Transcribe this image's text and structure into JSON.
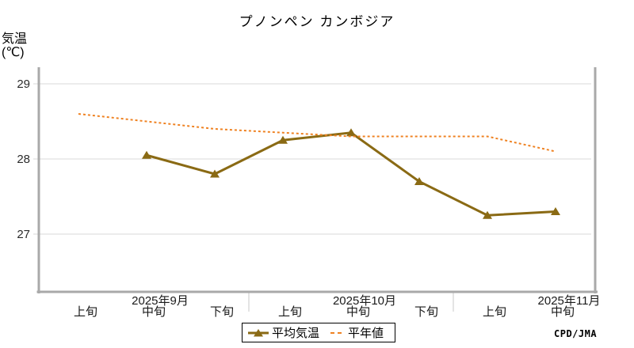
{
  "credit": "CPD/JMA",
  "ylabel": {
    "line1": "気温",
    "line2": "(℃)"
  },
  "chart_data": {
    "type": "line",
    "title": "プノンペン カンボジア",
    "xlabel": "",
    "ylabel": "気温(℃)",
    "categories": [
      "上旬",
      "中旬",
      "下旬",
      "上旬",
      "中旬",
      "下旬",
      "上旬",
      "中旬"
    ],
    "month_labels": [
      {
        "label": "2025年9月",
        "at_index": 1
      },
      {
        "label": "2025年10月",
        "at_index": 4
      },
      {
        "label": "2025年11月",
        "at_index": 7
      }
    ],
    "month_boundaries_after_index": [
      2,
      5
    ],
    "yticks": [
      27,
      28,
      29
    ],
    "ylim": [
      26.2,
      29.2
    ],
    "grid": true,
    "legend_position": "bottom",
    "series": [
      {
        "name": "平均気温",
        "color": "#8a6a14",
        "style": "solid",
        "marker": "triangle",
        "values": [
          null,
          28.05,
          27.8,
          28.25,
          28.35,
          27.7,
          27.25,
          27.3
        ]
      },
      {
        "name": "平年値",
        "color": "#ef8222",
        "style": "dashed",
        "marker": "none",
        "values": [
          28.6,
          28.5,
          28.4,
          28.35,
          28.3,
          28.3,
          28.3,
          28.1
        ]
      }
    ]
  }
}
